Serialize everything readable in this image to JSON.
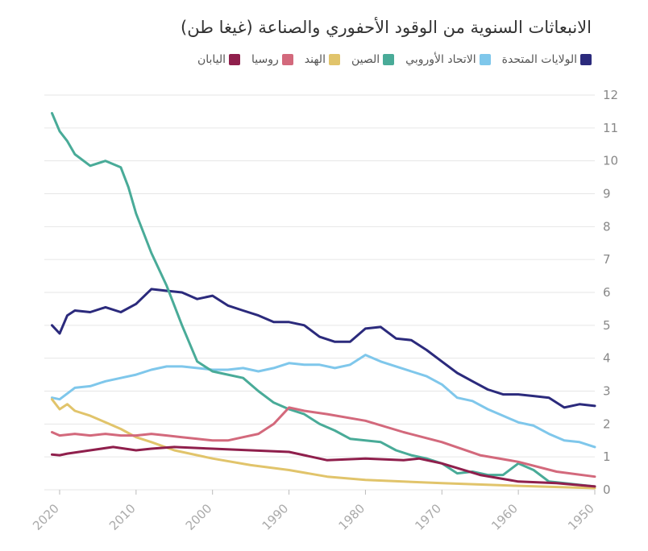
{
  "chart_data": {
    "type": "line",
    "title": "الانبعاثات السنوية من الوقود الأحفوري والصناعة (غيغا طن)",
    "xlabel": "",
    "ylabel": "",
    "xlim": [
      1950,
      2022
    ],
    "x_reversed": true,
    "ylim": [
      0,
      12
    ],
    "y_ticks": [
      "0",
      "1",
      "2",
      "3",
      "4",
      "5",
      "6",
      "7",
      "8",
      "9",
      "10",
      "11",
      "12"
    ],
    "x_ticks": [
      {
        "value": 2020,
        "label": "2020"
      },
      {
        "value": 2010,
        "label": "2010"
      },
      {
        "value": 2000,
        "label": "2000"
      },
      {
        "value": 1990,
        "label": "1990"
      },
      {
        "value": 1980,
        "label": "1980"
      },
      {
        "value": 1970,
        "label": "1970"
      },
      {
        "value": 1960,
        "label": "1960"
      },
      {
        "value": 1950,
        "label": "1950"
      }
    ],
    "grid": true,
    "legend_position": "top-right",
    "series": [
      {
        "name": "الولايات المتحدة",
        "color": "#2b2a7c",
        "points": [
          [
            1950,
            2.55
          ],
          [
            1952,
            2.6
          ],
          [
            1954,
            2.5
          ],
          [
            1956,
            2.8
          ],
          [
            1958,
            2.85
          ],
          [
            1960,
            2.9
          ],
          [
            1962,
            2.9
          ],
          [
            1964,
            3.05
          ],
          [
            1966,
            3.3
          ],
          [
            1968,
            3.55
          ],
          [
            1970,
            3.9
          ],
          [
            1972,
            4.25
          ],
          [
            1974,
            4.55
          ],
          [
            1976,
            4.6
          ],
          [
            1978,
            4.95
          ],
          [
            1980,
            4.9
          ],
          [
            1982,
            4.5
          ],
          [
            1984,
            4.5
          ],
          [
            1986,
            4.65
          ],
          [
            1988,
            5.0
          ],
          [
            1990,
            5.1
          ],
          [
            1992,
            5.1
          ],
          [
            1994,
            5.3
          ],
          [
            1996,
            5.45
          ],
          [
            1998,
            5.6
          ],
          [
            2000,
            5.9
          ],
          [
            2002,
            5.8
          ],
          [
            2004,
            6.0
          ],
          [
            2006,
            6.05
          ],
          [
            2008,
            6.1
          ],
          [
            2010,
            5.65
          ],
          [
            2012,
            5.4
          ],
          [
            2014,
            5.55
          ],
          [
            2016,
            5.4
          ],
          [
            2018,
            5.45
          ],
          [
            2019,
            5.3
          ],
          [
            2020,
            4.75
          ],
          [
            2021,
            5.0
          ]
        ]
      },
      {
        "name": "الاتحاد الأوروبي",
        "color": "#7fc7eb",
        "points": [
          [
            1950,
            1.3
          ],
          [
            1952,
            1.45
          ],
          [
            1954,
            1.5
          ],
          [
            1956,
            1.7
          ],
          [
            1958,
            1.95
          ],
          [
            1960,
            2.05
          ],
          [
            1962,
            2.25
          ],
          [
            1964,
            2.45
          ],
          [
            1966,
            2.7
          ],
          [
            1968,
            2.8
          ],
          [
            1970,
            3.2
          ],
          [
            1972,
            3.45
          ],
          [
            1974,
            3.6
          ],
          [
            1976,
            3.75
          ],
          [
            1978,
            3.9
          ],
          [
            1980,
            4.1
          ],
          [
            1982,
            3.8
          ],
          [
            1984,
            3.7
          ],
          [
            1986,
            3.8
          ],
          [
            1988,
            3.8
          ],
          [
            1990,
            3.85
          ],
          [
            1992,
            3.7
          ],
          [
            1994,
            3.6
          ],
          [
            1996,
            3.7
          ],
          [
            1998,
            3.65
          ],
          [
            2000,
            3.65
          ],
          [
            2002,
            3.7
          ],
          [
            2004,
            3.75
          ],
          [
            2006,
            3.75
          ],
          [
            2008,
            3.65
          ],
          [
            2010,
            3.5
          ],
          [
            2012,
            3.4
          ],
          [
            2014,
            3.3
          ],
          [
            2016,
            3.15
          ],
          [
            2018,
            3.1
          ],
          [
            2020,
            2.75
          ],
          [
            2021,
            2.8
          ]
        ]
      },
      {
        "name": "الصين",
        "color": "#49ab98",
        "points": [
          [
            1950,
            0.1
          ],
          [
            1952,
            0.15
          ],
          [
            1954,
            0.2
          ],
          [
            1956,
            0.25
          ],
          [
            1958,
            0.6
          ],
          [
            1960,
            0.8
          ],
          [
            1962,
            0.45
          ],
          [
            1964,
            0.45
          ],
          [
            1966,
            0.55
          ],
          [
            1968,
            0.5
          ],
          [
            1970,
            0.8
          ],
          [
            1972,
            0.95
          ],
          [
            1974,
            1.05
          ],
          [
            1976,
            1.2
          ],
          [
            1978,
            1.45
          ],
          [
            1980,
            1.5
          ],
          [
            1982,
            1.55
          ],
          [
            1984,
            1.8
          ],
          [
            1986,
            2.0
          ],
          [
            1988,
            2.3
          ],
          [
            1990,
            2.45
          ],
          [
            1992,
            2.65
          ],
          [
            1994,
            3.0
          ],
          [
            1996,
            3.4
          ],
          [
            1998,
            3.5
          ],
          [
            2000,
            3.6
          ],
          [
            2002,
            3.9
          ],
          [
            2004,
            5.0
          ],
          [
            2006,
            6.2
          ],
          [
            2008,
            7.2
          ],
          [
            2010,
            8.4
          ],
          [
            2011,
            9.2
          ],
          [
            2012,
            9.8
          ],
          [
            2014,
            10.0
          ],
          [
            2016,
            9.85
          ],
          [
            2018,
            10.2
          ],
          [
            2019,
            10.6
          ],
          [
            2020,
            10.9
          ],
          [
            2021,
            11.45
          ]
        ]
      },
      {
        "name": "الهند",
        "color": "#e1c46b",
        "points": [
          [
            1950,
            0.05
          ],
          [
            1960,
            0.12
          ],
          [
            1970,
            0.2
          ],
          [
            1980,
            0.3
          ],
          [
            1985,
            0.4
          ],
          [
            1990,
            0.6
          ],
          [
            1995,
            0.75
          ],
          [
            2000,
            0.95
          ],
          [
            2005,
            1.2
          ],
          [
            2008,
            1.45
          ],
          [
            2010,
            1.6
          ],
          [
            2012,
            1.85
          ],
          [
            2014,
            2.05
          ],
          [
            2016,
            2.25
          ],
          [
            2018,
            2.4
          ],
          [
            2019,
            2.6
          ],
          [
            2020,
            2.45
          ],
          [
            2021,
            2.75
          ]
        ]
      },
      {
        "name": "روسيا",
        "color": "#d3697c",
        "points": [
          [
            1950,
            0.4
          ],
          [
            1955,
            0.55
          ],
          [
            1960,
            0.85
          ],
          [
            1965,
            1.05
          ],
          [
            1970,
            1.45
          ],
          [
            1975,
            1.75
          ],
          [
            1980,
            2.1
          ],
          [
            1985,
            2.3
          ],
          [
            1988,
            2.4
          ],
          [
            1990,
            2.5
          ],
          [
            1992,
            2.0
          ],
          [
            1994,
            1.7
          ],
          [
            1996,
            1.6
          ],
          [
            1998,
            1.5
          ],
          [
            2000,
            1.5
          ],
          [
            2002,
            1.55
          ],
          [
            2004,
            1.6
          ],
          [
            2006,
            1.65
          ],
          [
            2008,
            1.7
          ],
          [
            2010,
            1.65
          ],
          [
            2012,
            1.65
          ],
          [
            2014,
            1.7
          ],
          [
            2016,
            1.65
          ],
          [
            2018,
            1.7
          ],
          [
            2020,
            1.65
          ],
          [
            2021,
            1.75
          ]
        ]
      },
      {
        "name": "اليابان",
        "color": "#8f1f4c",
        "points": [
          [
            1950,
            0.1
          ],
          [
            1955,
            0.2
          ],
          [
            1960,
            0.25
          ],
          [
            1965,
            0.45
          ],
          [
            1970,
            0.8
          ],
          [
            1973,
            0.95
          ],
          [
            1975,
            0.9
          ],
          [
            1980,
            0.95
          ],
          [
            1985,
            0.9
          ],
          [
            1990,
            1.15
          ],
          [
            1995,
            1.2
          ],
          [
            2000,
            1.25
          ],
          [
            2005,
            1.3
          ],
          [
            2008,
            1.25
          ],
          [
            2010,
            1.2
          ],
          [
            2013,
            1.3
          ],
          [
            2016,
            1.2
          ],
          [
            2019,
            1.1
          ],
          [
            2020,
            1.05
          ],
          [
            2021,
            1.07
          ]
        ]
      }
    ]
  }
}
